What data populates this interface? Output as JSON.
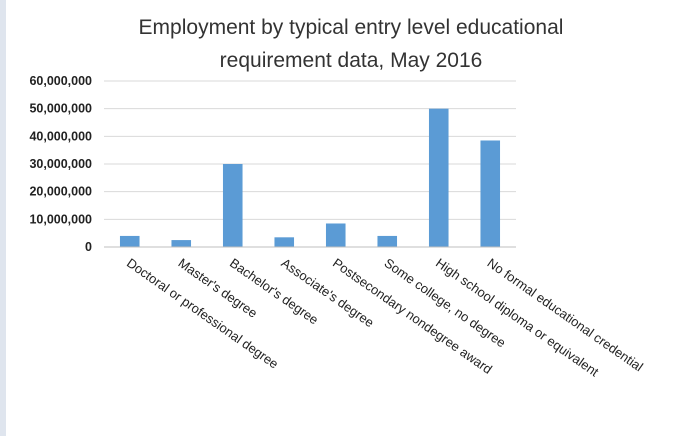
{
  "chart_data": {
    "type": "bar",
    "title_lines": [
      "Employment  by typical entry level educational",
      "requirement  data, May 2016"
    ],
    "categories": [
      "Doctoral or professional degree",
      "Master's degree",
      "Bachelor's degree",
      "Associate's degree",
      "Postsecondary nondegree award",
      "Some college, no degree",
      "High school diploma or equivalent",
      "No formal educational credential"
    ],
    "values": [
      4000000,
      2500000,
      30000000,
      3500000,
      8500000,
      4000000,
      50000000,
      38500000
    ],
    "ylim": [
      0,
      60000000
    ],
    "yticks": [
      0,
      10000000,
      20000000,
      30000000,
      40000000,
      50000000,
      60000000
    ],
    "ytick_labels": [
      "0",
      "10,000,000",
      "20,000,000",
      "30,000,000",
      "40,000,000",
      "50,000,000",
      "60,000,000"
    ],
    "xlabel": "",
    "ylabel": "",
    "grid": true,
    "legend": false,
    "bar_color": "#5b9bd5"
  }
}
